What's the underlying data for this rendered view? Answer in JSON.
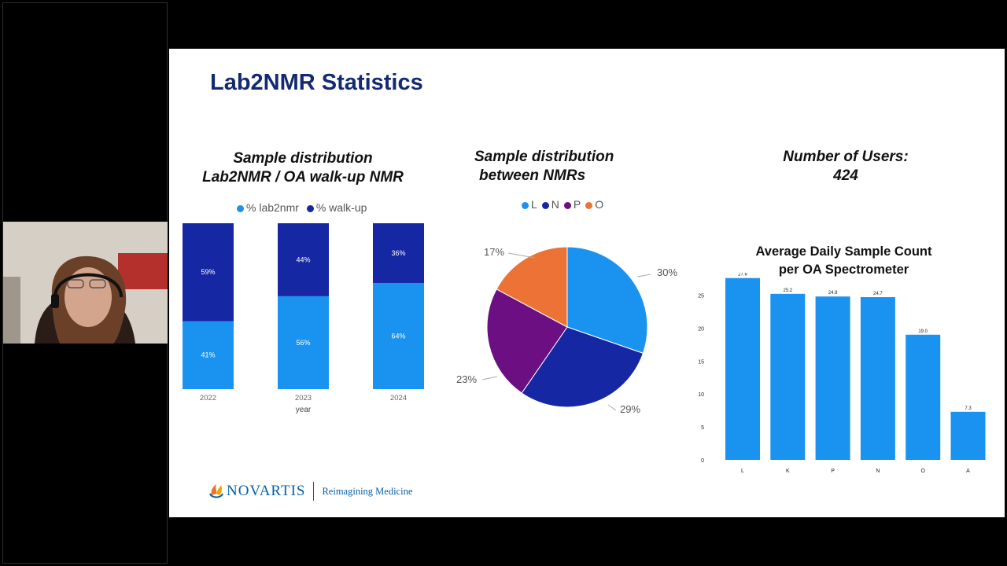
{
  "slide": {
    "title": "Lab2NMR Statistics",
    "section1": {
      "line1": "Sample distribution",
      "line2": "Lab2NMR / OA walk-up NMR"
    },
    "section2": {
      "line1": "Sample distribution",
      "line2": "between NMRs"
    },
    "section3": {
      "line1": "Number of Users:",
      "line2": "424"
    },
    "footer": {
      "brand": "NOVARTIS",
      "tagline": "Reimagining Medicine"
    }
  },
  "colors": {
    "title": "#132a73",
    "light_blue": "#1a93f0",
    "dark_blue": "#1527a3",
    "purple": "#6b0f83",
    "orange": "#ec7335",
    "bar_blue": "#1a93f0"
  },
  "webcam": {
    "content": "participant video"
  },
  "chart_data": [
    {
      "type": "bar",
      "stacked": true,
      "xlabel": "year",
      "categories": [
        "2022",
        "2023",
        "2024"
      ],
      "series": [
        {
          "name": "% lab2nmr",
          "values": [
            41,
            56,
            64
          ],
          "labels": [
            "41%",
            "56%",
            "64%"
          ],
          "color": "#1a93f0"
        },
        {
          "name": "% walk-up",
          "values": [
            59,
            44,
            36
          ],
          "labels": [
            "59%",
            "44%",
            "36%"
          ],
          "color": "#1527a3"
        }
      ],
      "legend": "top-center",
      "ylim": [
        0,
        100
      ]
    },
    {
      "type": "pie",
      "legend": "top-center",
      "slices": [
        {
          "name": "L",
          "value": 30,
          "label": "30%",
          "color": "#1a93f0"
        },
        {
          "name": "N",
          "value": 29,
          "label": "29%",
          "color": "#1527a3"
        },
        {
          "name": "P",
          "value": 23,
          "label": "23%",
          "color": "#6b0f83"
        },
        {
          "name": "O",
          "value": 17,
          "label": "17%",
          "color": "#ec7335"
        }
      ]
    },
    {
      "type": "bar",
      "title_line1": "Average Daily Sample Count",
      "title_line2": "per OA Spectrometer",
      "categories": [
        "L",
        "K",
        "P",
        "N",
        "O",
        "A"
      ],
      "values": [
        27.6,
        25.2,
        24.8,
        24.7,
        19.0,
        7.3
      ],
      "value_labels": [
        "27.6",
        "25.2",
        "24.8",
        "24.7",
        "19.0",
        "7.3"
      ],
      "yticks": [
        "0",
        "5",
        "10",
        "15",
        "20",
        "25"
      ],
      "ylim": [
        0,
        28.5
      ],
      "color": "#1a93f0"
    }
  ]
}
